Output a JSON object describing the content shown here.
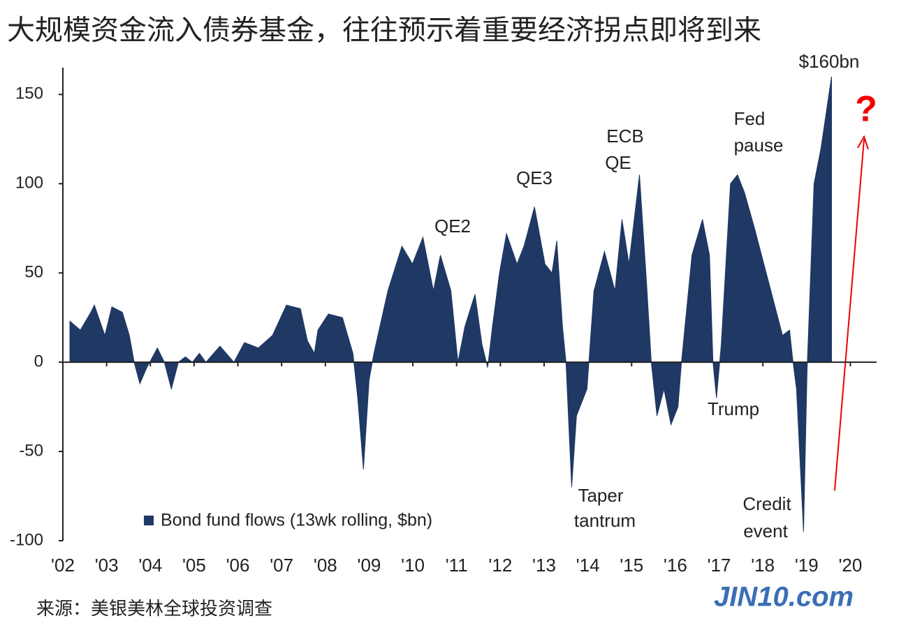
{
  "title": "大规模资金流入债券基金，往往预示着重要经济拐点即将到来",
  "source": "来源：美银美林全球投资调查",
  "watermark": "JIN10.com",
  "chart_data": {
    "type": "area",
    "x": [
      2002.16,
      2002.4,
      2002.64,
      2002.72,
      2002.96,
      2003.12,
      2003.36,
      2003.52,
      2003.63,
      2003.76,
      2003.92,
      2004.16,
      2004.32,
      2004.48,
      2004.64,
      2004.8,
      2004.96,
      2005.12,
      2005.27,
      2005.59,
      2005.91,
      2006.15,
      2006.47,
      2006.79,
      2007.11,
      2007.43,
      2007.59,
      2007.75,
      2007.83,
      2008.07,
      2008.39,
      2008.63,
      2008.74,
      2008.87,
      2009.0,
      2009.11,
      2009.43,
      2009.75,
      2009.99,
      2010.23,
      2010.47,
      2010.63,
      2010.87,
      2011.03,
      2011.19,
      2011.42,
      2011.58,
      2011.71,
      2011.82,
      2011.98,
      2012.14,
      2012.38,
      2012.54,
      2012.78,
      2013.02,
      2013.18,
      2013.29,
      2013.42,
      2013.5,
      2013.63,
      2013.74,
      2013.98,
      2014.14,
      2014.38,
      2014.62,
      2014.78,
      2014.94,
      2015.18,
      2015.34,
      2015.45,
      2015.58,
      2015.74,
      2015.9,
      2016.06,
      2016.14,
      2016.38,
      2016.62,
      2016.78,
      2016.86,
      2016.94,
      2017.05,
      2017.26,
      2017.42,
      2017.58,
      2017.81,
      2018.13,
      2018.45,
      2018.61,
      2018.69,
      2018.77,
      2018.93,
      2019.01,
      2019.17,
      2019.33,
      2019.57
    ],
    "series": [
      {
        "name": "Bond fund flows (13wk rolling, $bn)",
        "color": "#1f3864",
        "values": [
          23,
          18,
          28,
          32,
          15,
          31,
          28,
          15,
          0,
          -12,
          -3,
          8,
          0,
          -15,
          0,
          3,
          0,
          5,
          0,
          9,
          0,
          11,
          8,
          15,
          32,
          30,
          12,
          5,
          18,
          27,
          25,
          5,
          -20,
          -60,
          -10,
          5,
          40,
          65,
          55,
          70,
          40,
          60,
          40,
          0,
          20,
          38,
          10,
          -3,
          20,
          50,
          72,
          55,
          65,
          87,
          55,
          50,
          68,
          20,
          0,
          -70,
          -30,
          -15,
          40,
          62,
          40,
          80,
          55,
          105,
          45,
          0,
          -30,
          -15,
          -35,
          -25,
          0,
          60,
          80,
          60,
          0,
          -20,
          10,
          100,
          105,
          95,
          75,
          45,
          15,
          18,
          0,
          -15,
          -95,
          -5,
          100,
          120,
          160
        ]
      }
    ],
    "xlim": [
      2002,
      2020.6
    ],
    "xticks": [
      {
        "value": 2002,
        "label": "'02"
      },
      {
        "value": 2003,
        "label": "'03"
      },
      {
        "value": 2004,
        "label": "'04"
      },
      {
        "value": 2005,
        "label": "'05"
      },
      {
        "value": 2006,
        "label": "'06"
      },
      {
        "value": 2007,
        "label": "'07"
      },
      {
        "value": 2008,
        "label": "'08"
      },
      {
        "value": 2009,
        "label": "'09"
      },
      {
        "value": 2010,
        "label": "'10"
      },
      {
        "value": 2011,
        "label": "'11"
      },
      {
        "value": 2012,
        "label": "'12"
      },
      {
        "value": 2013,
        "label": "'13"
      },
      {
        "value": 2014,
        "label": "'14"
      },
      {
        "value": 2015,
        "label": "'15"
      },
      {
        "value": 2016,
        "label": "'16"
      },
      {
        "value": 2017,
        "label": "'17"
      },
      {
        "value": 2018,
        "label": "'18"
      },
      {
        "value": 2019,
        "label": "'19"
      },
      {
        "value": 2020,
        "label": "'20"
      }
    ],
    "ylim": [
      -100,
      165
    ],
    "yticks": [
      -100,
      -50,
      0,
      50,
      100,
      150
    ],
    "annotations": [
      "QE2",
      "QE3",
      "ECB",
      "QE",
      "Fed",
      "pause",
      "$160bn",
      "Taper",
      "tantrum",
      "Trump",
      "Credit",
      "event",
      "?"
    ],
    "legend": "lower-left"
  }
}
